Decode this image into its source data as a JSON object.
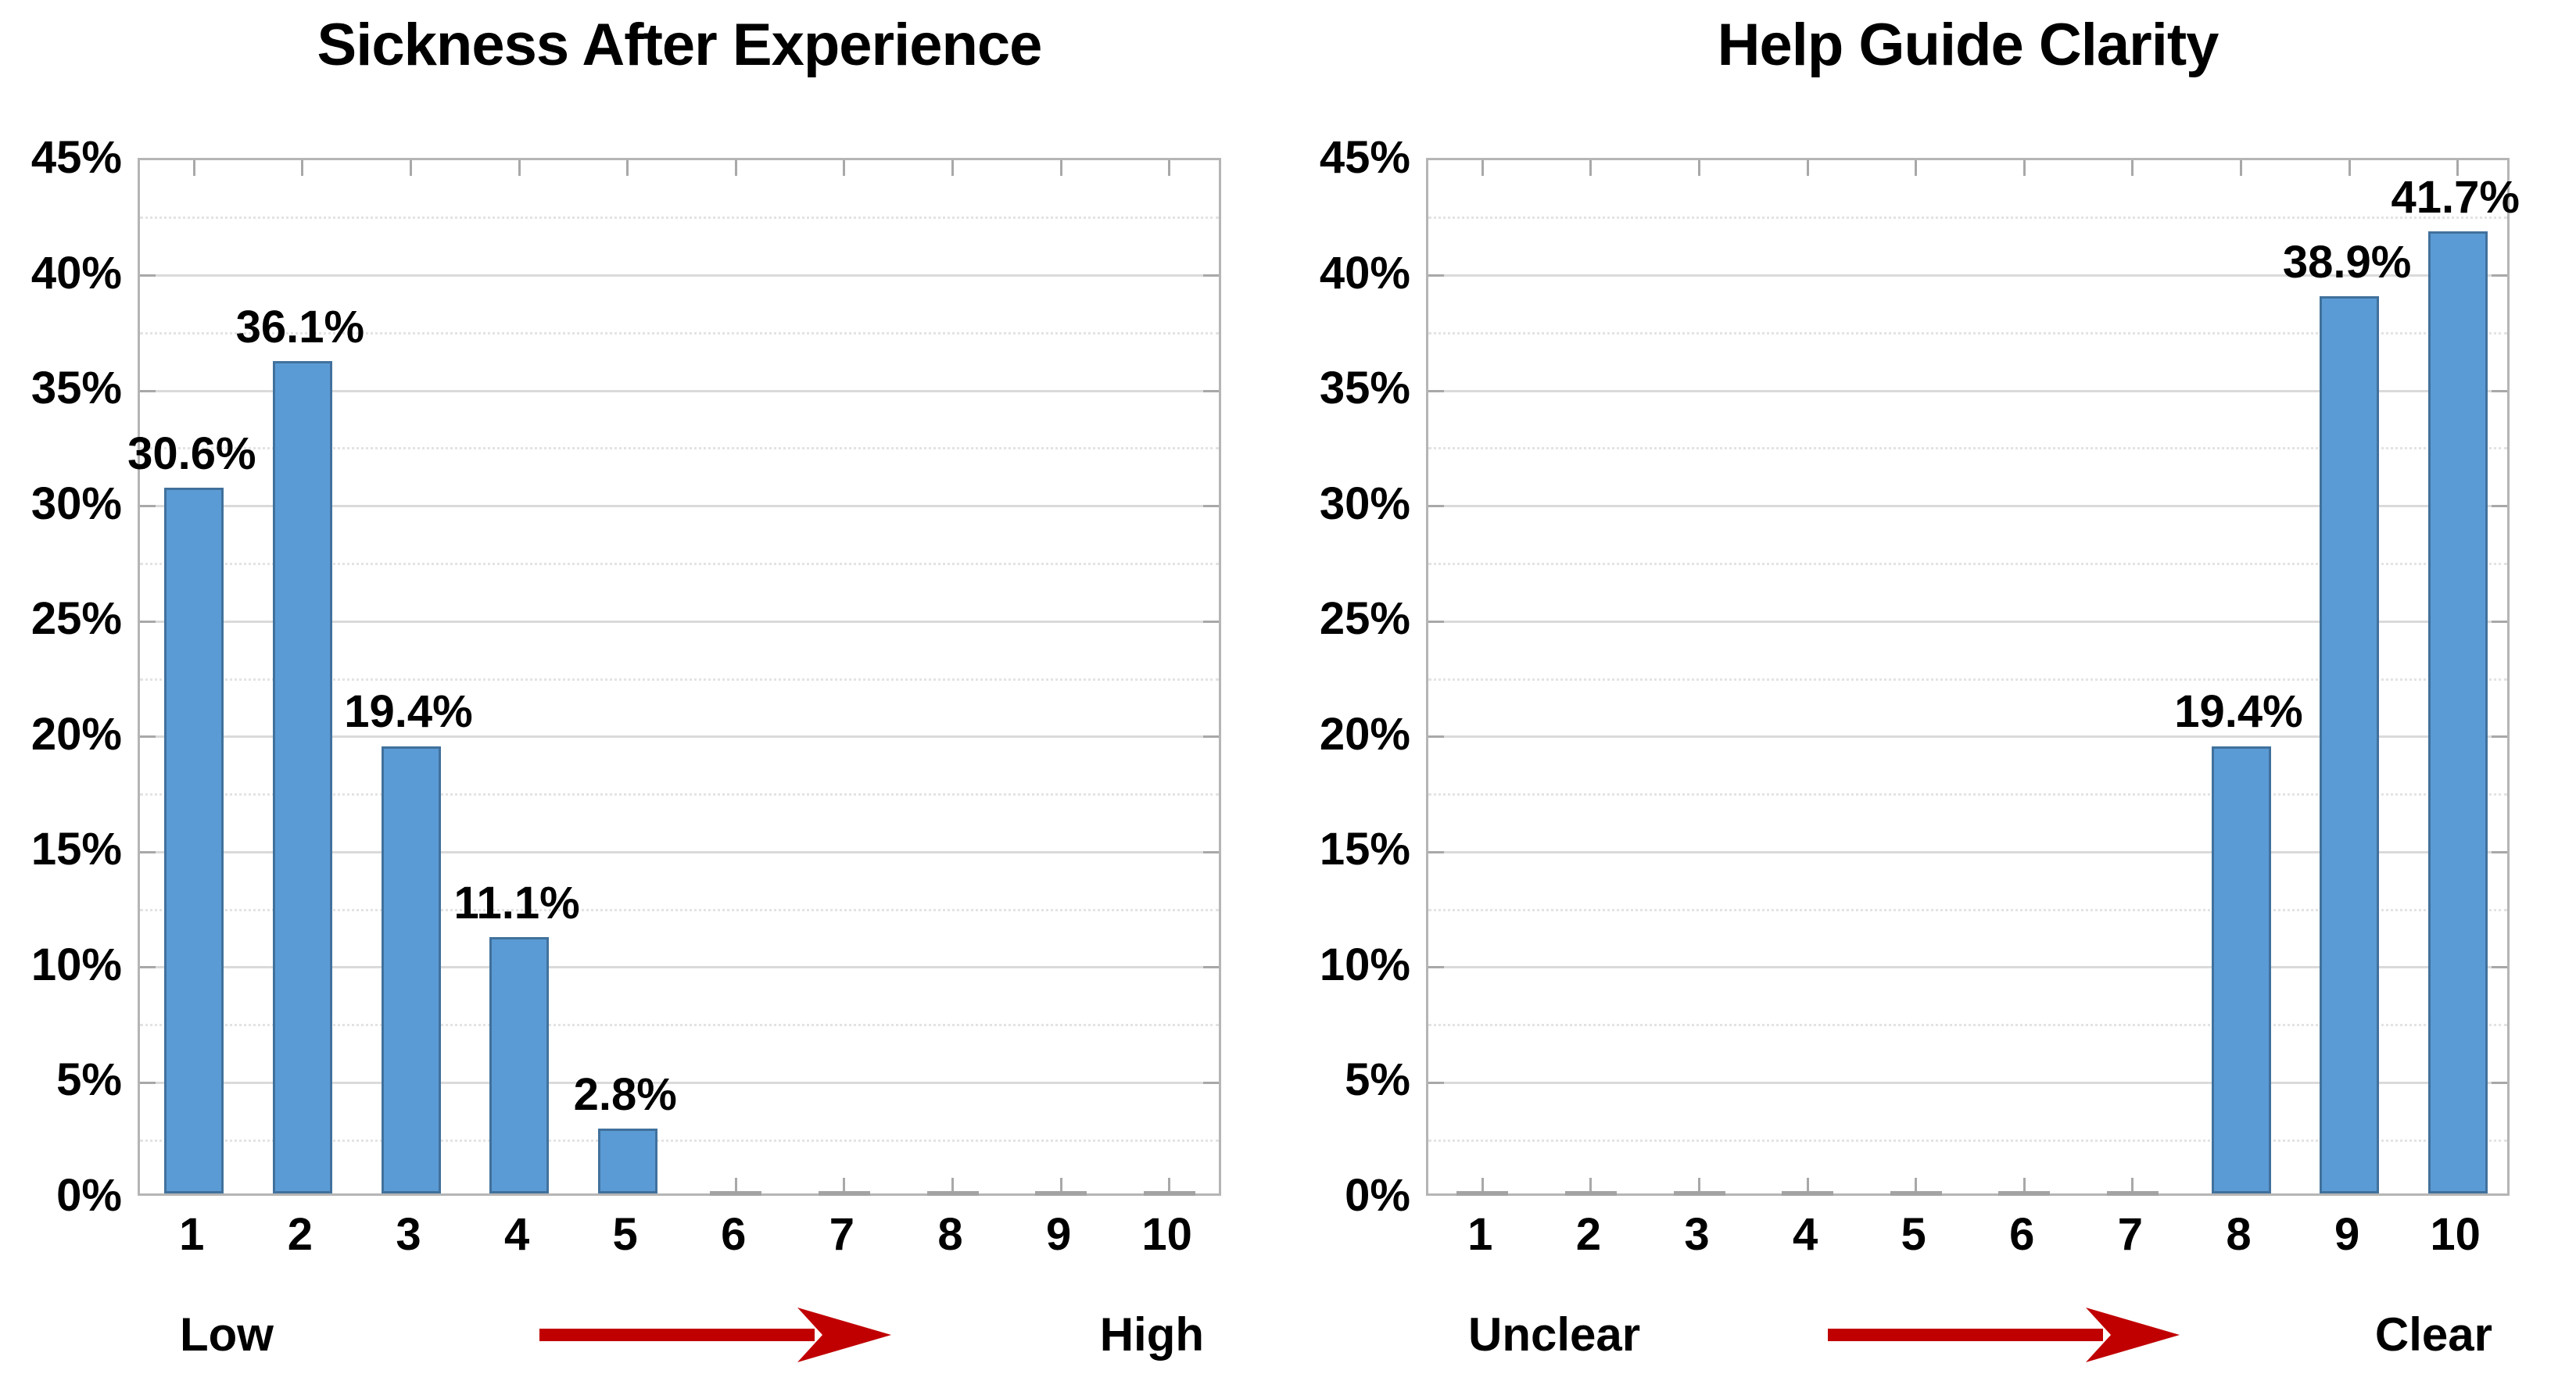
{
  "colors": {
    "bar_fill": "#5B9BD5",
    "bar_border": "#41719C",
    "zero_bar": "#A3A3A3",
    "grid_major": "#DADADA",
    "grid_minor": "#E3E3E3",
    "axis_box": "#B5B5B5",
    "tick": "#A8A8A8",
    "arrow": "#C00000",
    "text": "#000000"
  },
  "chart_data": [
    {
      "type": "bar",
      "title": "Sickness After Experience",
      "categories": [
        "1",
        "2",
        "3",
        "4",
        "5",
        "6",
        "7",
        "8",
        "9",
        "10"
      ],
      "values": [
        30.6,
        36.1,
        19.4,
        11.1,
        2.8,
        0,
        0,
        0,
        0,
        0
      ],
      "value_labels": [
        "30.6%",
        "36.1%",
        "19.4%",
        "11.1%",
        "2.8%",
        "",
        "",
        "",
        "",
        ""
      ],
      "xlabel": "",
      "ylabel": "",
      "ylim": [
        0,
        45
      ],
      "ytick_step": 5,
      "minor_grid_step": 2.5,
      "ytick_labels": [
        "0%",
        "5%",
        "10%",
        "15%",
        "20%",
        "25%",
        "30%",
        "35%",
        "40%",
        "45%"
      ],
      "grid": "major 5% solid, minor 2.5% dotted",
      "legend": "none",
      "axis_annotation": {
        "left_label": "Low",
        "right_label": "High",
        "arrow_direction": "right"
      }
    },
    {
      "type": "bar",
      "title": "Help Guide Clarity",
      "categories": [
        "1",
        "2",
        "3",
        "4",
        "5",
        "6",
        "7",
        "8",
        "9",
        "10"
      ],
      "values": [
        0,
        0,
        0,
        0,
        0,
        0,
        0,
        19.4,
        38.9,
        41.7
      ],
      "value_labels": [
        "",
        "",
        "",
        "",
        "",
        "",
        "",
        "19.4%",
        "38.9%",
        "41.7%"
      ],
      "xlabel": "",
      "ylabel": "",
      "ylim": [
        0,
        45
      ],
      "ytick_step": 5,
      "minor_grid_step": 2.5,
      "ytick_labels": [
        "0%",
        "5%",
        "10%",
        "15%",
        "20%",
        "25%",
        "30%",
        "35%",
        "40%",
        "45%"
      ],
      "grid": "major 5% solid, minor 2.5% dotted",
      "legend": "none",
      "axis_annotation": {
        "left_label": "Unclear",
        "right_label": "Clear",
        "arrow_direction": "right"
      }
    }
  ]
}
